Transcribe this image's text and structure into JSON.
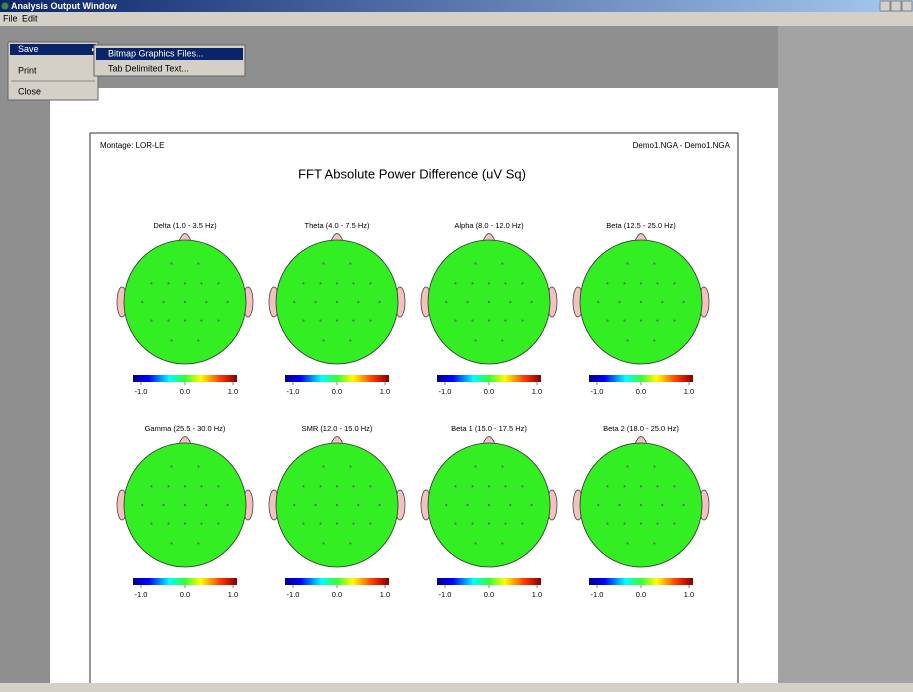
{
  "window": {
    "title": "Analysis Output Window"
  },
  "menu_bar": [
    "File",
    "Edit"
  ],
  "file_menu": [
    "Save",
    "Print",
    "Close"
  ],
  "save_submenu": [
    "Bitmap Graphics Files...",
    "Tab Delimited Text..."
  ],
  "report": {
    "montage": "Montage:  LOR-LE",
    "files": "Demo1.NGA - Demo1.NGA",
    "title": "FFT Absolute Power Difference  (uV Sq)",
    "maps": [
      {
        "title": "Delta (1.0 - 3.5 Hz)",
        "scale": [
          "-1.0",
          "0.0",
          "1.0"
        ]
      },
      {
        "title": "Theta (4.0 - 7.5 Hz)",
        "scale": [
          "-1.0",
          "0.0",
          "1.0"
        ]
      },
      {
        "title": "Alpha (8.0 - 12.0 Hz)",
        "scale": [
          "-1.0",
          "0.0",
          "1.0"
        ]
      },
      {
        "title": "Beta (12.5 - 25.0 Hz)",
        "scale": [
          "-1.0",
          "0.0",
          "1.0"
        ]
      },
      {
        "title": "Gamma (25.5 - 30.0 Hz)",
        "scale": [
          "-1.0",
          "0.0",
          "1.0"
        ]
      },
      {
        "title": "SMR (12.0 - 15.0 Hz)",
        "scale": [
          "-1.0",
          "0.0",
          "1.0"
        ]
      },
      {
        "title": "Beta 1 (15.0 - 17.5 Hz)",
        "scale": [
          "-1.0",
          "0.0",
          "1.0"
        ]
      },
      {
        "title": "Beta 2 (18.0 - 25.0 Hz)",
        "scale": [
          "-1.0",
          "0.0",
          "1.0"
        ]
      }
    ]
  }
}
